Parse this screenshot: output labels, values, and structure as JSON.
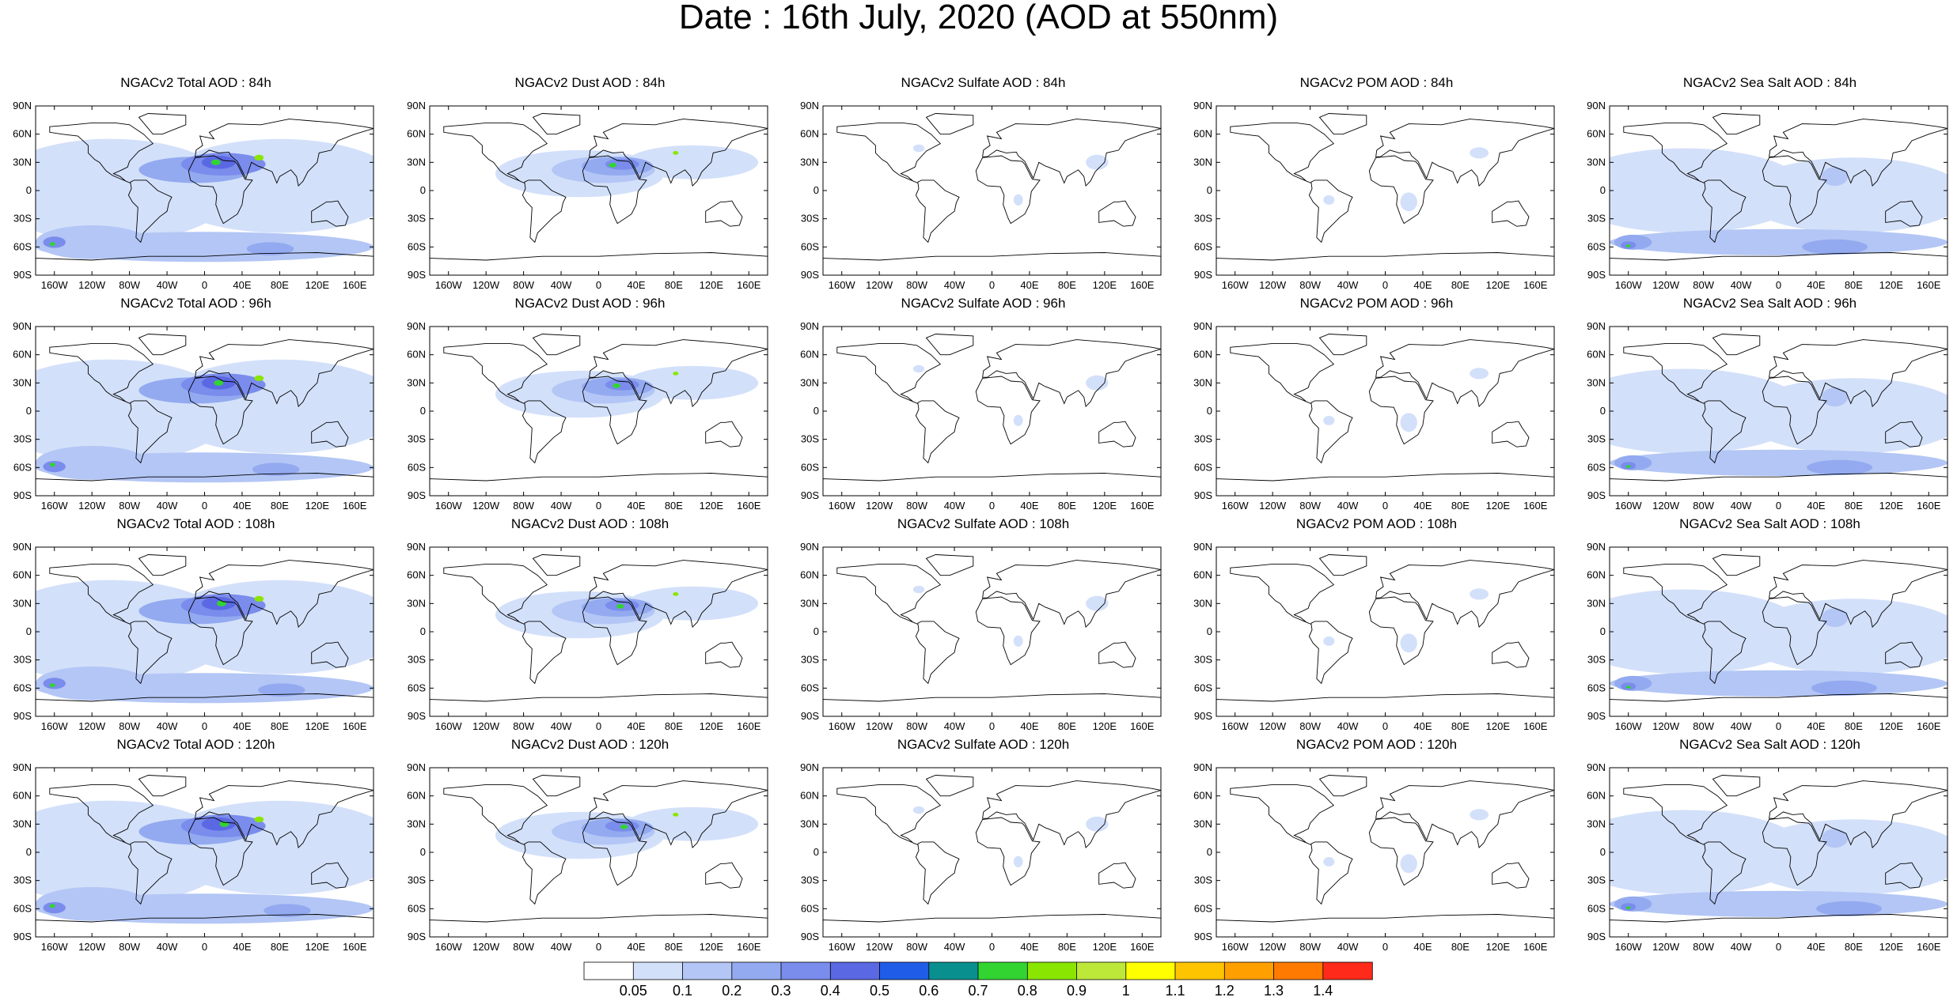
{
  "title": "Date : 16th July, 2020 (AOD at 550nm)",
  "lat_labels": [
    "90N",
    "60N",
    "30N",
    "0",
    "30S",
    "60S",
    "90S"
  ],
  "lon_labels": [
    "160W",
    "120W",
    "80W",
    "40W",
    "0",
    "40E",
    "80E",
    "120E",
    "160E"
  ],
  "rows": [
    [
      "NGACv2 Total AOD : 84h",
      "NGACv2 Dust AOD : 84h",
      "NGACv2 Sulfate AOD : 84h",
      "NGACv2 POM AOD : 84h",
      "NGACv2 Sea Salt AOD : 84h"
    ],
    [
      "NGACv2 Total AOD : 96h",
      "NGACv2 Dust AOD : 96h",
      "NGACv2 Sulfate AOD : 96h",
      "NGACv2 POM AOD : 96h",
      "NGACv2 Sea Salt AOD : 96h"
    ],
    [
      "NGACv2 Total AOD : 108h",
      "NGACv2 Dust AOD : 108h",
      "NGACv2 Sulfate AOD : 108h",
      "NGACv2 POM AOD : 108h",
      "NGACv2 Sea Salt AOD : 108h"
    ],
    [
      "NGACv2 Total AOD : 120h",
      "NGACv2 Dust AOD : 120h",
      "NGACv2 Sulfate AOD : 120h",
      "NGACv2 POM AOD : 120h",
      "NGACv2 Sea Salt  AOD : 120h"
    ]
  ],
  "colorbar": {
    "labels": [
      "0.05",
      "0.1",
      "0.2",
      "0.3",
      "0.4",
      "0.5",
      "0.6",
      "0.7",
      "0.8",
      "0.9",
      "1",
      "1.1",
      "1.2",
      "1.3",
      "1.4"
    ],
    "colors": [
      "#ffffff",
      "#d3e0fa",
      "#b3c6f5",
      "#93aaf0",
      "#7a8cec",
      "#5b68e4",
      "#1f5de8",
      "#0a8f8f",
      "#32d432",
      "#8ae600",
      "#bde83a",
      "#ffff00",
      "#ffc400",
      "#ff9f00",
      "#ff7a00",
      "#ff2a1a"
    ]
  }
}
